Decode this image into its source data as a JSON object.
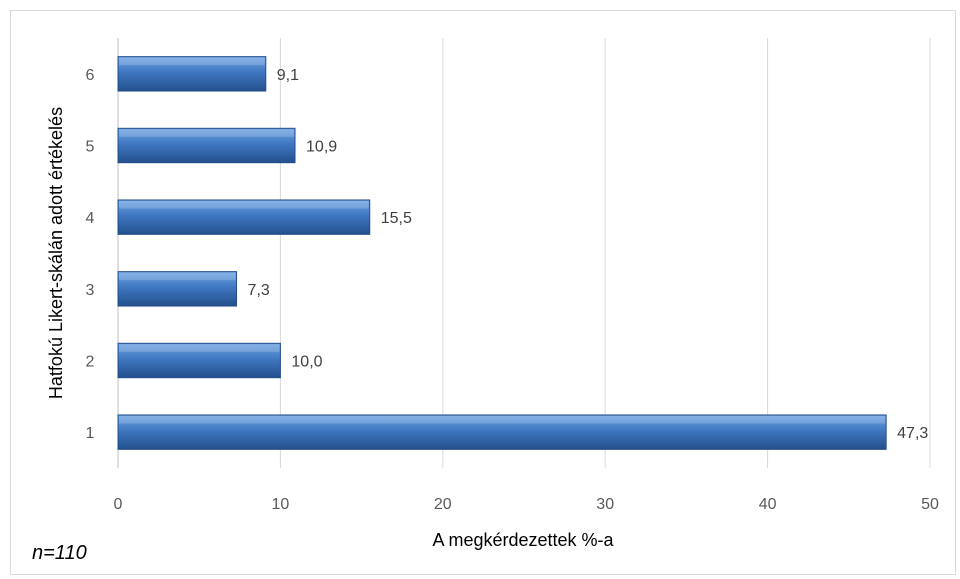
{
  "note": "n=110",
  "chart_data": {
    "type": "bar",
    "orientation": "horizontal",
    "categories": [
      "1",
      "2",
      "3",
      "4",
      "5",
      "6"
    ],
    "values": [
      47.3,
      10.0,
      7.3,
      15.5,
      10.9,
      9.1
    ],
    "value_labels": [
      "47,3",
      "10,0",
      "7,3",
      "15,5",
      "10,9",
      "9,1"
    ],
    "xlabel": "A megkérdezettek %-a",
    "ylabel": "Hatfokú Likert-skálán adott értékelés",
    "xlim": [
      0,
      50
    ],
    "xticks": [
      0,
      10,
      20,
      30,
      40,
      50
    ],
    "grid": true,
    "legend": "none",
    "colors": {
      "bar": "#3f78c2",
      "bar_light": "#6fa3e3",
      "bar_dark": "#234f8c",
      "grid": "#d9d9d9",
      "axis": "#bfbfbf"
    }
  }
}
